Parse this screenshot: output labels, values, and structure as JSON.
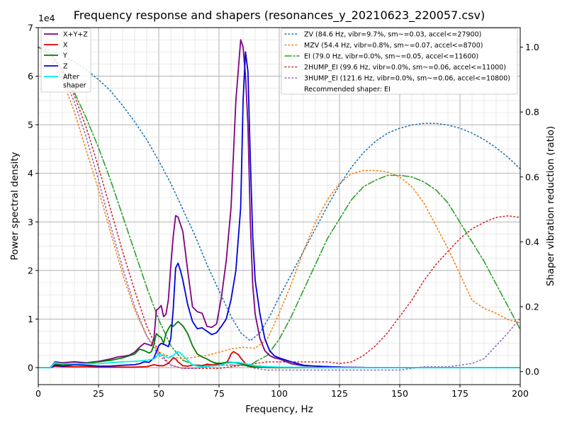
{
  "chart_data": {
    "type": "line",
    "title": "Frequency response and shapers (resonances_y_20210623_220057.csv)",
    "xlabel": "Frequency, Hz",
    "ylabel": "Power spectral density",
    "y2label": "Shaper vibration reduction (ratio)",
    "y_offset_text": "1e4",
    "xlim": [
      0,
      200
    ],
    "ylim": [
      -3500,
      70000
    ],
    "y2lim": [
      -0.04,
      1.06
    ],
    "x_ticks": [
      0,
      25,
      50,
      75,
      100,
      125,
      150,
      175,
      200
    ],
    "x_tick_labels": [
      "0",
      "25",
      "50",
      "75",
      "100",
      "125",
      "150",
      "175",
      "200"
    ],
    "y_ticks": [
      0,
      10000,
      20000,
      30000,
      40000,
      50000,
      60000,
      70000
    ],
    "y_tick_labels": [
      "0",
      "1",
      "2",
      "3",
      "4",
      "5",
      "6",
      "7"
    ],
    "y2_ticks": [
      0.0,
      0.2,
      0.4,
      0.6,
      0.8,
      1.0
    ],
    "y2_tick_labels": [
      "0.0",
      "0.2",
      "0.4",
      "0.6",
      "0.8",
      "1.0"
    ],
    "grid": true,
    "legend_left_placement": "upper-left",
    "legend_right_placement": "upper-right",
    "psd_series": [
      {
        "name": "X+Y+Z",
        "color": "#800080",
        "style": "solid",
        "x": [
          0,
          5,
          7,
          10,
          15,
          20,
          25,
          30,
          33,
          35,
          38,
          40,
          42,
          44,
          46,
          47,
          48,
          49,
          50,
          51,
          52,
          53,
          54,
          55,
          56,
          57,
          58,
          60,
          62,
          64,
          66,
          68,
          70,
          72,
          74,
          76,
          78,
          80,
          82,
          84,
          85,
          86,
          87,
          88,
          89,
          90,
          92,
          94,
          96,
          98,
          100,
          105,
          110,
          115,
          120,
          125,
          130,
          140,
          150,
          160,
          170,
          180,
          190,
          200
        ],
        "y": [
          0,
          0,
          1200,
          1000,
          1200,
          1000,
          1300,
          1800,
          2200,
          2300,
          2600,
          3200,
          4200,
          5000,
          4700,
          4500,
          6000,
          11800,
          12200,
          12800,
          10500,
          11000,
          14000,
          21000,
          27000,
          31300,
          31000,
          28000,
          20000,
          12500,
          11500,
          11200,
          8500,
          8300,
          9000,
          14500,
          22000,
          33000,
          55000,
          67500,
          66000,
          60000,
          50000,
          30000,
          17000,
          11000,
          6000,
          3500,
          2500,
          2000,
          1800,
          800,
          400,
          300,
          200,
          100,
          50,
          0,
          0,
          0,
          0,
          0,
          0,
          0
        ]
      },
      {
        "name": "X",
        "color": "#e00000",
        "style": "solid",
        "x": [
          0,
          5,
          7,
          10,
          15,
          20,
          25,
          30,
          35,
          40,
          45,
          48,
          50,
          52,
          54,
          56,
          57,
          58,
          60,
          62,
          64,
          66,
          68,
          70,
          72,
          74,
          76,
          78,
          79,
          80,
          81,
          82,
          83,
          84,
          86,
          88,
          90,
          95,
          100,
          110,
          120,
          150,
          200
        ],
        "y": [
          0,
          0,
          300,
          200,
          200,
          200,
          100,
          100,
          100,
          100,
          200,
          600,
          400,
          400,
          900,
          2000,
          1800,
          1200,
          400,
          300,
          500,
          500,
          400,
          700,
          600,
          700,
          700,
          900,
          1700,
          2800,
          3300,
          3000,
          2700,
          2000,
          800,
          300,
          100,
          50,
          0,
          0,
          0,
          0,
          0
        ]
      },
      {
        "name": "Y",
        "color": "#008000",
        "style": "solid",
        "x": [
          0,
          5,
          7,
          10,
          15,
          20,
          25,
          30,
          35,
          40,
          42,
          44,
          46,
          47,
          48,
          49,
          50,
          51,
          52,
          53,
          54,
          55,
          56,
          57,
          58,
          60,
          62,
          64,
          66,
          68,
          70,
          72,
          74,
          76,
          78,
          80,
          82,
          84,
          86,
          88,
          90,
          95,
          100,
          110,
          120,
          150,
          200
        ],
        "y": [
          0,
          0,
          700,
          600,
          800,
          900,
          1200,
          1500,
          2000,
          2800,
          3800,
          3500,
          3000,
          3300,
          4800,
          7000,
          6500,
          6200,
          5000,
          7000,
          8000,
          8800,
          8500,
          9000,
          9500,
          8600,
          7000,
          4500,
          2800,
          2200,
          1800,
          1200,
          900,
          900,
          1100,
          1100,
          1000,
          800,
          500,
          200,
          100,
          50,
          0,
          0,
          0,
          0,
          0
        ]
      },
      {
        "name": "Z",
        "color": "#0000dd",
        "style": "solid",
        "x": [
          0,
          5,
          7,
          10,
          15,
          20,
          25,
          30,
          35,
          40,
          42,
          44,
          46,
          48,
          50,
          51,
          52,
          53,
          54,
          55,
          56,
          57,
          58,
          59,
          60,
          62,
          64,
          66,
          68,
          70,
          72,
          74,
          76,
          78,
          80,
          82,
          84,
          85,
          86,
          87,
          88,
          89,
          90,
          92,
          94,
          96,
          98,
          100,
          105,
          110,
          115,
          120,
          125,
          130,
          140,
          150,
          200
        ],
        "y": [
          0,
          0,
          500,
          300,
          600,
          500,
          300,
          300,
          500,
          600,
          800,
          1200,
          1100,
          2000,
          4500,
          5000,
          4800,
          4600,
          4300,
          6000,
          12000,
          20500,
          21500,
          20000,
          18000,
          13000,
          9500,
          8000,
          8200,
          7500,
          6800,
          7200,
          8500,
          10000,
          14000,
          20000,
          33000,
          55000,
          65000,
          61000,
          43000,
          27000,
          18000,
          11000,
          6000,
          3500,
          2400,
          2000,
          1200,
          500,
          300,
          200,
          100,
          50,
          0,
          0,
          0
        ]
      },
      {
        "name": "After\nshaper",
        "color": "#00eeee",
        "style": "solid",
        "x": [
          0,
          5,
          7,
          10,
          15,
          20,
          25,
          30,
          35,
          40,
          45,
          48,
          50,
          52,
          54,
          56,
          57,
          58,
          59,
          60,
          62,
          64,
          66,
          68,
          70,
          72,
          74,
          76,
          78,
          80,
          82,
          84,
          86,
          88,
          90,
          95,
          100,
          110,
          120,
          150,
          200
        ],
        "y": [
          0,
          0,
          1000,
          800,
          800,
          800,
          800,
          1000,
          1200,
          1300,
          1500,
          1800,
          2800,
          2500,
          2000,
          2500,
          3000,
          3300,
          3000,
          2500,
          1500,
          600,
          300,
          200,
          300,
          400,
          400,
          600,
          900,
          1000,
          1100,
          1000,
          800,
          600,
          400,
          200,
          100,
          50,
          0,
          0,
          0
        ]
      }
    ],
    "shaper_series": [
      {
        "name": "ZV (84.6 Hz, vibr=9.7%, sm~=0.03, accel<=27900)",
        "color": "#1f77b4",
        "style": "dotted",
        "x": [
          0,
          5,
          10,
          15,
          20,
          25,
          30,
          35,
          40,
          45,
          50,
          55,
          60,
          65,
          70,
          75,
          80,
          84,
          88,
          92,
          96,
          100,
          105,
          110,
          115,
          120,
          125,
          130,
          135,
          140,
          145,
          150,
          155,
          160,
          165,
          170,
          175,
          180,
          185,
          190,
          195,
          200
        ],
        "y": [
          1.0,
          0.99,
          0.975,
          0.955,
          0.93,
          0.9,
          0.865,
          0.82,
          0.77,
          0.715,
          0.65,
          0.58,
          0.5,
          0.42,
          0.33,
          0.25,
          0.17,
          0.12,
          0.095,
          0.12,
          0.17,
          0.23,
          0.3,
          0.37,
          0.44,
          0.51,
          0.575,
          0.63,
          0.675,
          0.71,
          0.735,
          0.75,
          0.76,
          0.765,
          0.765,
          0.76,
          0.75,
          0.735,
          0.715,
          0.69,
          0.66,
          0.625
        ]
      },
      {
        "name": "MZV (54.4 Hz, vibr=0.8%, sm~=0.07, accel<=8700)",
        "color": "#ff7f0e",
        "style": "dotted",
        "x": [
          0,
          5,
          10,
          15,
          20,
          25,
          30,
          35,
          40,
          45,
          50,
          55,
          60,
          65,
          70,
          75,
          80,
          85,
          90,
          95,
          100,
          105,
          110,
          115,
          120,
          125,
          130,
          135,
          140,
          145,
          150,
          155,
          160,
          165,
          170,
          175,
          180,
          185,
          190,
          195,
          200
        ],
        "y": [
          1.0,
          0.97,
          0.9,
          0.8,
          0.68,
          0.56,
          0.43,
          0.3,
          0.19,
          0.11,
          0.06,
          0.045,
          0.04,
          0.045,
          0.05,
          0.06,
          0.07,
          0.075,
          0.072,
          0.1,
          0.18,
          0.27,
          0.37,
          0.46,
          0.53,
          0.58,
          0.61,
          0.62,
          0.62,
          0.615,
          0.6,
          0.57,
          0.52,
          0.45,
          0.38,
          0.3,
          0.22,
          0.195,
          0.18,
          0.16,
          0.15
        ]
      },
      {
        "name": "EI (79.0 Hz, vibr=0.0%, sm~=0.05, accel<=11600)",
        "color": "#2ca02c",
        "style": "dashdot",
        "x": [
          0,
          5,
          10,
          15,
          20,
          25,
          30,
          35,
          40,
          45,
          50,
          55,
          60,
          65,
          70,
          75,
          80,
          85,
          88,
          90,
          95,
          100,
          105,
          110,
          115,
          120,
          125,
          130,
          135,
          140,
          145,
          150,
          155,
          160,
          165,
          170,
          175,
          180,
          185,
          190,
          195,
          200
        ],
        "y": [
          1.0,
          0.98,
          0.93,
          0.86,
          0.78,
          0.69,
          0.59,
          0.48,
          0.37,
          0.26,
          0.16,
          0.08,
          0.035,
          0.02,
          0.02,
          0.02,
          0.02,
          0.02,
          0.02,
          0.03,
          0.05,
          0.1,
          0.17,
          0.25,
          0.33,
          0.41,
          0.47,
          0.53,
          0.57,
          0.59,
          0.605,
          0.605,
          0.6,
          0.585,
          0.56,
          0.52,
          0.46,
          0.4,
          0.34,
          0.27,
          0.2,
          0.13
        ]
      },
      {
        "name": "2HUMP_EI (99.6 Hz, vibr=0.0%, sm~=0.06, accel<=11000)",
        "color": "#d62728",
        "style": "dotted",
        "x": [
          0,
          5,
          10,
          15,
          20,
          25,
          30,
          35,
          40,
          45,
          50,
          55,
          60,
          65,
          70,
          75,
          80,
          85,
          90,
          95,
          100,
          105,
          110,
          115,
          120,
          125,
          130,
          135,
          140,
          145,
          150,
          155,
          160,
          165,
          170,
          175,
          180,
          185,
          190,
          195,
          200
        ],
        "y": [
          1.0,
          0.98,
          0.93,
          0.85,
          0.75,
          0.63,
          0.5,
          0.37,
          0.25,
          0.14,
          0.06,
          0.02,
          0.01,
          0.01,
          0.01,
          0.01,
          0.015,
          0.02,
          0.025,
          0.03,
          0.03,
          0.03,
          0.03,
          0.03,
          0.03,
          0.025,
          0.03,
          0.05,
          0.08,
          0.12,
          0.17,
          0.22,
          0.28,
          0.33,
          0.37,
          0.41,
          0.44,
          0.46,
          0.475,
          0.48,
          0.475
        ]
      },
      {
        "name": "3HUMP_EI (121.6 Hz, vibr=0.0%, sm~=0.06, accel<=10800)",
        "color": "#9467bd",
        "style": "dotted",
        "x": [
          0,
          5,
          10,
          15,
          20,
          25,
          30,
          35,
          40,
          45,
          50,
          55,
          60,
          65,
          70,
          75,
          80,
          85,
          90,
          95,
          100,
          110,
          120,
          130,
          140,
          150,
          155,
          160,
          165,
          170,
          175,
          180,
          185,
          190,
          195,
          200
        ],
        "y": [
          1.0,
          0.98,
          0.92,
          0.83,
          0.72,
          0.59,
          0.45,
          0.32,
          0.2,
          0.11,
          0.05,
          0.02,
          0.01,
          0.01,
          0.015,
          0.02,
          0.02,
          0.02,
          0.01,
          0.005,
          0.005,
          0.005,
          0.005,
          0.005,
          0.005,
          0.005,
          0.01,
          0.015,
          0.015,
          0.015,
          0.02,
          0.025,
          0.04,
          0.08,
          0.12,
          0.165
        ]
      }
    ],
    "recommendation_text": "Recommended shaper: EI"
  }
}
